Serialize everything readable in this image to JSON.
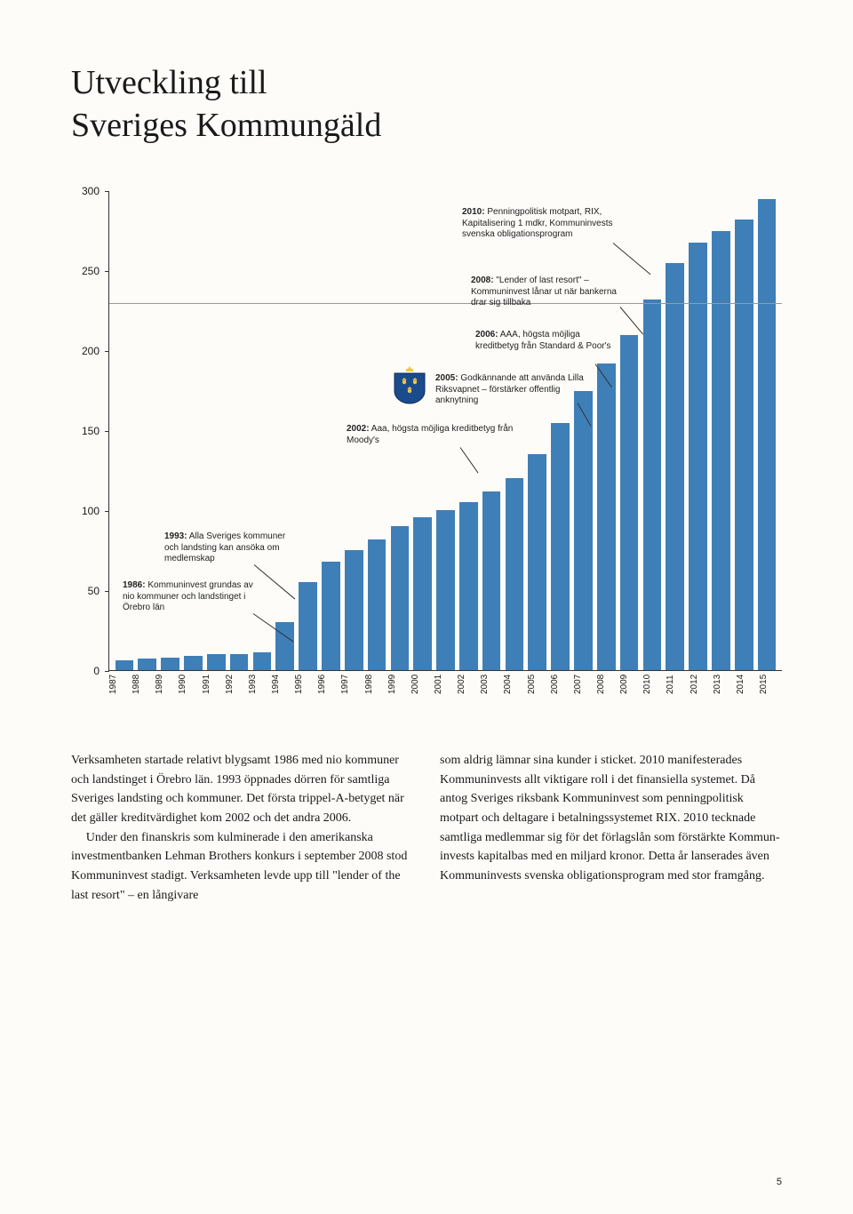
{
  "title_line1": "Utveckling till",
  "title_line2": "Sveriges Kommungäld",
  "chart": {
    "type": "bar",
    "ylim": [
      0,
      300
    ],
    "ytick_step": 50,
    "yticks": [
      0,
      50,
      100,
      150,
      200,
      250,
      300
    ],
    "years": [
      "1987",
      "1988",
      "1989",
      "1990",
      "1991",
      "1992",
      "1993",
      "1994",
      "1995",
      "1996",
      "1997",
      "1998",
      "1999",
      "2000",
      "2001",
      "2002",
      "2003",
      "2004",
      "2005",
      "2006",
      "2007",
      "2008",
      "2009",
      "2010",
      "2011",
      "2012",
      "2013",
      "2014",
      "2015"
    ],
    "values": [
      6,
      7,
      8,
      9,
      10,
      10,
      11,
      30,
      55,
      68,
      75,
      82,
      90,
      96,
      100,
      105,
      112,
      120,
      135,
      155,
      175,
      192,
      210,
      232,
      255,
      268,
      275,
      282,
      295
    ],
    "bar_color": "#3e7fb8",
    "plot_bg": "#fdfcf8",
    "axis_color": "#333333",
    "hline_y": 230,
    "hline_color": "#999999"
  },
  "annotations": {
    "a1986": {
      "year_bold": "1986:",
      "text": " Kommuninvest grundas av nio kommuner och landstinget i Örebro län"
    },
    "a1993": {
      "year_bold": "1993:",
      "text": " Alla Sveriges kommuner och landsting kan ansöka om medlemskap"
    },
    "a2002": {
      "year_bold": "2002:",
      "text": " Aaa, högsta möjliga kreditbe­tyg från Moody's"
    },
    "a2005": {
      "year_bold": "2005:",
      "text": " Godkännande att använda Lilla Riksvapnet – förstärker offentlig anknytning"
    },
    "a2006": {
      "year_bold": "2006:",
      "text": " AAA, högsta möjliga kreditbetyg från Standard & Poor's"
    },
    "a2008": {
      "year_bold": "2008:",
      "text": " \"Lender of last resort\" – Kommuninvest lånar ut när bankerna drar sig tillbaka"
    },
    "a2010": {
      "year_bold": "2010:",
      "text": " Penningpolitisk motpart, RIX, Kapitalisering 1 mdkr, Kommuninvests svenska obligationsprogram"
    }
  },
  "crest_colors": {
    "shield": "#1a4b8c",
    "crowns": "#f5c542",
    "top_crown": "#f5c542"
  },
  "body": {
    "col1_p1": "Verksamheten startade relativt blygsamt 1986 med nio kommuner och landstinget i Örebro län. 1993 öppnades dörren för samtliga Sveriges landsting och kommuner. Det första trippel-A-betyget när det gäller kreditvärdig­het kom 2002 och det andra 2006.",
    "col1_p2": "Under den finanskris som kulminerade i den amerikanska investmentbanken Lehman Brothers konkurs i september 2008 stod Kom­muninvest stadigt. Verksamheten levde upp till \"lender of the last resort\" – en långivare",
    "col2_p1": "som aldrig lämnar sina kunder i sticket. 2010 manifesterades Kommuninvests allt viktigare roll i det finansiella systemet. Då antog Sveri­ges riksbank Kommuninvest som penningpo­litisk motpart och deltagare i betalningssyste­met RIX. 2010 tecknade samtliga medlemmar sig för det förlagslån som förstärkte Kommun­invests kapitalbas med en miljard kronor. Det­ta år lanserades även Kommuninvests svenska obligationsprogram med stor framgång."
  },
  "pagenum": "5"
}
